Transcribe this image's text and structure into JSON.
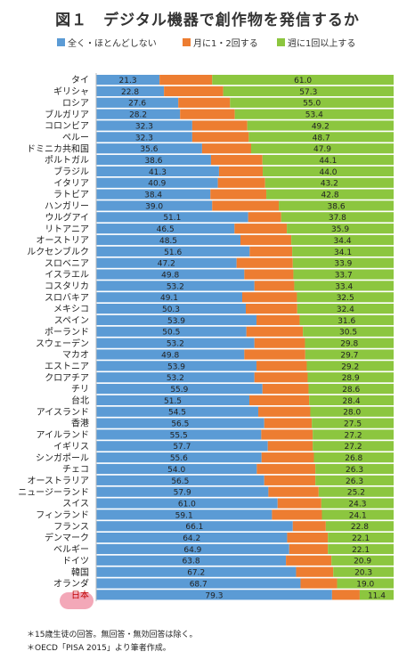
{
  "title": "図１　デジタル機器で創作物を発信するか",
  "legend": {
    "items": [
      {
        "label": "全く・ほとんどしない",
        "color": "#5b9bd5"
      },
      {
        "label": "月に1・2回する",
        "color": "#ed7d31"
      },
      {
        "label": "週に1回以上する",
        "color": "#8cc63f"
      }
    ]
  },
  "footnotes": [
    "＊15歳生徒の回答。無回答・無効回答は除く。",
    "＊OECD「PISA 2015」より筆者作成。"
  ],
  "chart_data": {
    "type": "bar",
    "orientation": "horizontal",
    "stacked": true,
    "xlim": [
      0,
      100
    ],
    "categories": [
      "タイ",
      "ギリシャ",
      "ロシア",
      "ブルガリア",
      "コロンビア",
      "ペルー",
      "ドミニカ共和国",
      "ポルトガル",
      "ブラジル",
      "イタリア",
      "ラトビア",
      "ハンガリー",
      "ウルグアイ",
      "リトアニア",
      "オーストリア",
      "ルクセンブルク",
      "スロベニア",
      "イスラエル",
      "コスタリカ",
      "スロバキア",
      "メキシコ",
      "スペイン",
      "ポーランド",
      "スウェーデン",
      "マカオ",
      "エストニア",
      "クロアチア",
      "チリ",
      "台北",
      "アイスランド",
      "香港",
      "アイルランド",
      "イギリス",
      "シンガポール",
      "チェコ",
      "オーストラリア",
      "ニュージーランド",
      "スイス",
      "フィンランド",
      "フランス",
      "デンマーク",
      "ベルギー",
      "ドイツ",
      "韓国",
      "オランダ",
      "日本"
    ],
    "series": [
      {
        "name": "全く・ほとんどしない",
        "color": "#5b9bd5",
        "values": [
          21.3,
          22.8,
          27.6,
          28.2,
          32.3,
          32.3,
          35.6,
          38.6,
          41.3,
          40.9,
          38.4,
          39.0,
          51.1,
          46.5,
          48.5,
          51.6,
          47.2,
          49.8,
          53.2,
          49.1,
          50.3,
          53.9,
          50.5,
          53.2,
          49.8,
          53.9,
          53.2,
          55.9,
          51.5,
          54.5,
          56.5,
          55.5,
          57.7,
          55.6,
          54.0,
          56.5,
          57.9,
          61.0,
          59.1,
          66.1,
          64.2,
          64.9,
          63.8,
          67.2,
          68.7,
          79.3
        ]
      },
      {
        "name": "月に1・2回する",
        "color": "#ed7d31",
        "values": [
          17.7,
          19.9,
          17.4,
          18.4,
          18.5,
          19.0,
          16.5,
          17.3,
          14.7,
          15.9,
          18.8,
          22.4,
          11.1,
          17.6,
          17.1,
          14.3,
          18.9,
          16.5,
          13.4,
          18.4,
          17.3,
          14.5,
          19.0,
          17.0,
          20.5,
          16.9,
          17.9,
          15.5,
          20.1,
          17.5,
          16.0,
          17.3,
          15.1,
          17.6,
          19.7,
          17.2,
          16.9,
          14.7,
          16.8,
          11.1,
          13.7,
          13.0,
          15.3,
          12.5,
          12.3,
          9.3
        ]
      },
      {
        "name": "週に1回以上する",
        "color": "#8cc63f",
        "values": [
          61.0,
          57.3,
          55.0,
          53.4,
          49.2,
          48.7,
          47.9,
          44.1,
          44.0,
          43.2,
          42.8,
          38.6,
          37.8,
          35.9,
          34.4,
          34.1,
          33.9,
          33.7,
          33.4,
          32.5,
          32.4,
          31.6,
          30.5,
          29.8,
          29.7,
          29.2,
          28.9,
          28.6,
          28.4,
          28.0,
          27.5,
          27.2,
          27.2,
          26.8,
          26.3,
          26.3,
          25.2,
          24.3,
          24.1,
          22.8,
          22.1,
          22.1,
          20.9,
          20.3,
          19.0,
          11.4
        ]
      }
    ],
    "data_labels": {
      "first": [
        "21.3",
        "22.8",
        "27.6",
        "28.2",
        "32.3",
        "32.3",
        "35.6",
        "38.6",
        "41.3",
        "40.9",
        "38.4",
        "39.0",
        "51.1",
        "46.5",
        "48.5",
        "51.6",
        "47.2",
        "49.8",
        "53.2",
        "49.1",
        "50.3",
        "53.9",
        "50.5",
        "53.2",
        "49.8",
        "53.9",
        "53.2",
        "55.9",
        "51.5",
        "54.5",
        "56.5",
        "55.5",
        "57.7",
        "55.6",
        "54.0",
        "56.5",
        "57.9",
        "61.0",
        "59.1",
        "66.1",
        "64.2",
        "64.9",
        "63.8",
        "67.2",
        "68.7",
        "79.3"
      ],
      "third": [
        "61.0",
        "57.3",
        "55.0",
        "53.4",
        "49.2",
        "48.7",
        "47.9",
        "44.1",
        "44.0",
        "43.2",
        "42.8",
        "38.6",
        "37.8",
        "35.9",
        "34.4",
        "34.1",
        "33.9",
        "33.7",
        "33.4",
        "32.5",
        "32.4",
        "31.6",
        "30.5",
        "29.8",
        "29.7",
        "29.2",
        "28.9",
        "28.6",
        "28.4",
        "28.0",
        "27.5",
        "27.2",
        "27.2",
        "26.8",
        "26.3",
        "26.3",
        "25.2",
        "24.3",
        "24.1",
        "22.8",
        "22.1",
        "22.1",
        "20.9",
        "20.3",
        "19.0",
        "11.4"
      ]
    },
    "highlight_category": "日本",
    "grid": false,
    "legend_position": "top"
  }
}
